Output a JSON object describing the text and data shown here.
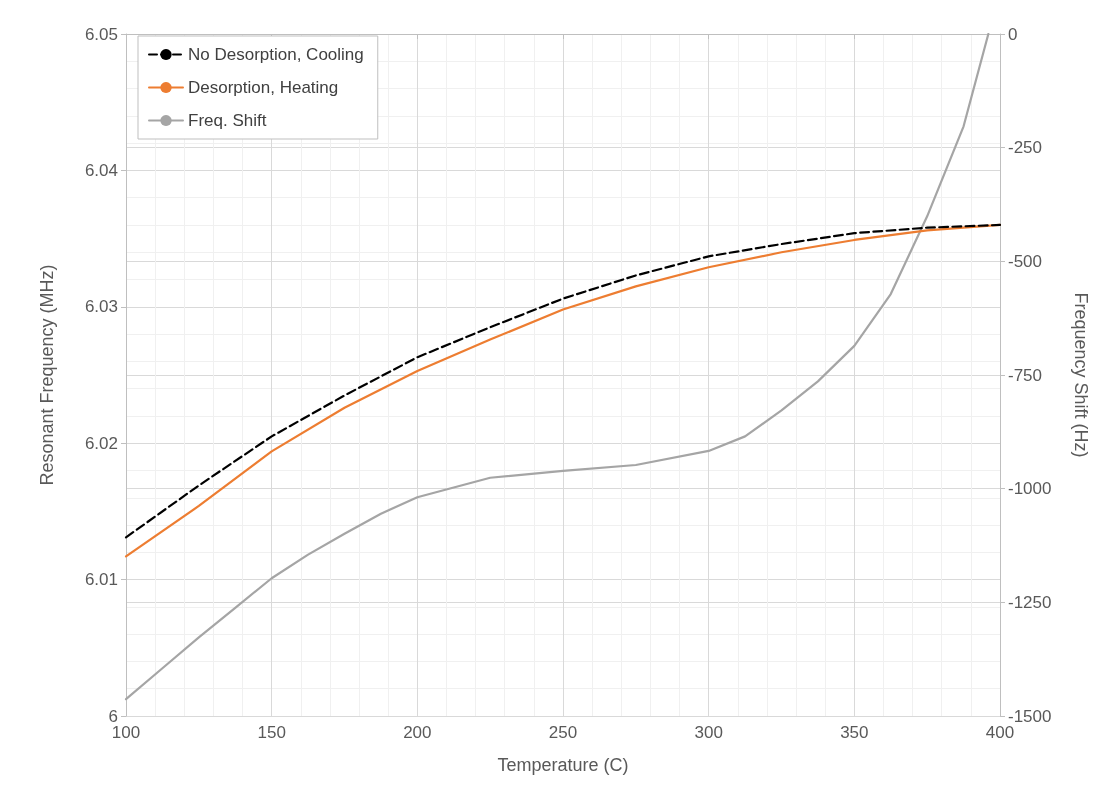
{
  "chart_data": {
    "type": "line",
    "xlabel": "Temperature (C)",
    "ylabel": "Resonant Frequency (MHz)",
    "y2label": "Frequency Shift (Hz)",
    "xlim": [
      100,
      400
    ],
    "xticks": [
      100,
      150,
      200,
      250,
      300,
      350,
      400
    ],
    "ylim": [
      6,
      6.05
    ],
    "yticks": [
      6,
      6.01,
      6.02,
      6.03,
      6.04,
      6.05
    ],
    "y2lim": [
      -1500,
      0
    ],
    "y2ticks": [
      -1500,
      -1250,
      -1000,
      -750,
      -500,
      -250,
      0
    ],
    "grid": true,
    "legend": "top left",
    "marker": "none",
    "series": [
      {
        "name": "No Desorption, Cooling",
        "color": "#000000",
        "line_style": "dashed",
        "x": [
          100,
          125,
          150,
          175,
          200,
          225,
          250,
          275,
          300,
          325,
          350,
          375,
          400
        ],
        "values": [
          6.0131,
          6.0169,
          6.0205,
          6.0235,
          6.0263,
          6.0285,
          6.0306,
          6.0323,
          6.0337,
          6.0346,
          6.0354,
          6.0358,
          6.036
        ]
      },
      {
        "name": "Desorption, Heating",
        "color": "#ed7d31",
        "line_style": "solid",
        "x": [
          100,
          125,
          150,
          175,
          200,
          225,
          250,
          275,
          300,
          325,
          350,
          375,
          400
        ],
        "values": [
          6.0117,
          6.0154,
          6.0194,
          6.0226,
          6.0253,
          6.0276,
          6.0298,
          6.0315,
          6.0329,
          6.034,
          6.0349,
          6.0356,
          6.036
        ]
      },
      {
        "name": "Freq. Shift",
        "color": "#a5a5a5",
        "line_style": "solid",
        "axis": "y2",
        "x": [
          100,
          112.5,
          125,
          137.5,
          150,
          162.5,
          175,
          187.5,
          200,
          225,
          250,
          275,
          300,
          312.5,
          325,
          337.5,
          350,
          362.5,
          375,
          387.5,
          396
        ],
        "values": [
          -1463,
          -1395,
          -1327,
          -1262,
          -1197,
          -1145,
          -1099,
          -1055,
          -1019,
          -976,
          -961,
          -948,
          -917,
          -885,
          -828,
          -764,
          -686,
          -572,
          -401,
          -203,
          0
        ]
      }
    ]
  }
}
